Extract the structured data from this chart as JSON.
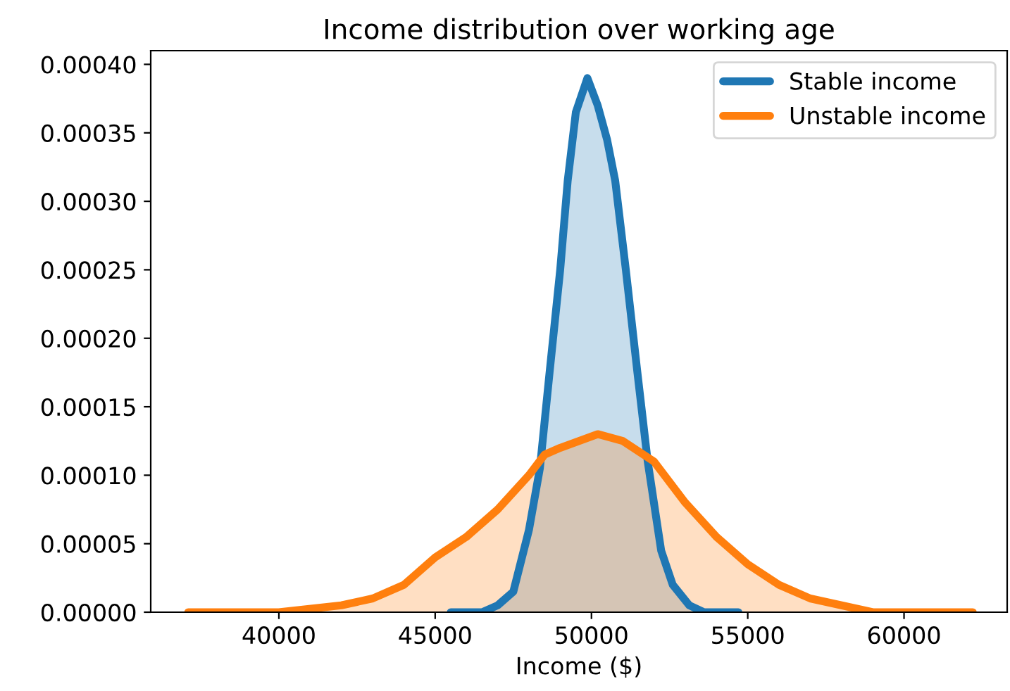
{
  "chart_data": {
    "type": "area",
    "title": "Income distribution over working age",
    "xlabel": "Income ($)",
    "series": [
      {
        "name": "Stable income",
        "color": "#1f77b4",
        "x": [
          45500,
          46500,
          47000,
          47500,
          48000,
          48350,
          48660,
          49000,
          49240,
          49500,
          49870,
          50200,
          50500,
          50760,
          51100,
          51470,
          51800,
          52230,
          52600,
          53130,
          53600,
          54700
        ],
        "values": [
          0,
          0,
          5e-06,
          1.5e-05,
          6e-05,
          0.000105,
          0.000175,
          0.00025,
          0.000315,
          0.000365,
          0.00039,
          0.00037,
          0.000345,
          0.000315,
          0.00025,
          0.000175,
          0.00011,
          4.5e-05,
          2e-05,
          5e-06,
          0,
          0
        ]
      },
      {
        "name": "Unstable income",
        "color": "#ff7f0e",
        "x": [
          37100,
          40000,
          42000,
          43000,
          44000,
          45000,
          46000,
          47000,
          48000,
          48500,
          49000,
          50200,
          51000,
          52000,
          53000,
          54000,
          55000,
          56000,
          57000,
          58000,
          59000,
          60000,
          62200
        ],
        "values": [
          0,
          0,
          5e-06,
          1e-05,
          2e-05,
          4e-05,
          5.5e-05,
          7.5e-05,
          0.0001,
          0.000115,
          0.00012,
          0.00013,
          0.000125,
          0.00011,
          8e-05,
          5.5e-05,
          3.5e-05,
          2e-05,
          1e-05,
          5e-06,
          0,
          0,
          0
        ]
      }
    ],
    "xlim": [
      35900,
      63300
    ],
    "ylim": [
      0,
      0.00041
    ],
    "xticks": [
      40000,
      45000,
      50000,
      55000,
      60000
    ],
    "yticks": [
      {
        "value": 0,
        "label": "0.00000"
      },
      {
        "value": 5e-05,
        "label": "0.00005"
      },
      {
        "value": 0.0001,
        "label": "0.00010"
      },
      {
        "value": 0.00015,
        "label": "0.00015"
      },
      {
        "value": 0.0002,
        "label": "0.00020"
      },
      {
        "value": 0.00025,
        "label": "0.00025"
      },
      {
        "value": 0.0003,
        "label": "0.00030"
      },
      {
        "value": 0.00035,
        "label": "0.00035"
      },
      {
        "value": 0.0004,
        "label": "0.00040"
      }
    ],
    "grid": false,
    "legend": "top right"
  }
}
